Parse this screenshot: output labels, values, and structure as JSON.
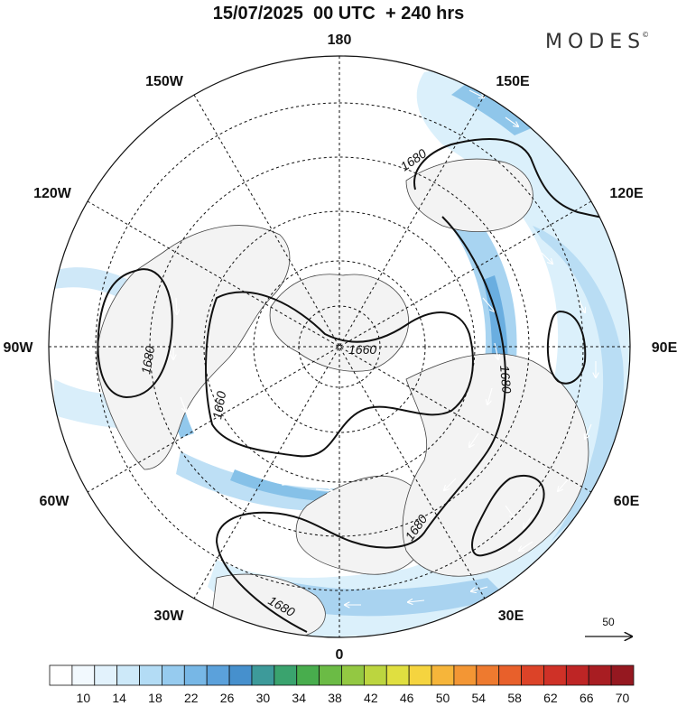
{
  "header": {
    "title": "15/07/2025  00 UTC  + 240 hrs",
    "brand": "MODES",
    "brand_mark": "©"
  },
  "map": {
    "projection": "north polar stereographic",
    "longitude_labels": [
      {
        "text": "180",
        "lon": 180
      },
      {
        "text": "150E",
        "lon": 150
      },
      {
        "text": "120E",
        "lon": 120
      },
      {
        "text": "90E",
        "lon": 90
      },
      {
        "text": "60E",
        "lon": 60
      },
      {
        "text": "30E",
        "lon": 30
      },
      {
        "text": "0",
        "lon": 0
      },
      {
        "text": "30W",
        "lon": -30
      },
      {
        "text": "60W",
        "lon": -60
      },
      {
        "text": "90W",
        "lon": -90
      },
      {
        "text": "120W",
        "lon": -120
      },
      {
        "text": "150W",
        "lon": -150
      }
    ],
    "contour_labels": [
      "1680",
      "1680",
      "1660",
      "1660",
      "1680",
      "1680",
      "1680"
    ],
    "wind_reference": {
      "value": "50",
      "unit": "arrow"
    }
  },
  "colorbar": {
    "labels": [
      "10",
      "14",
      "18",
      "22",
      "26",
      "30",
      "34",
      "38",
      "42",
      "46",
      "50",
      "54",
      "58",
      "62",
      "66",
      "70"
    ],
    "colors": [
      "#ffffff",
      "#f2f9fe",
      "#e2f2fc",
      "#cde9f9",
      "#b3dcf5",
      "#96cbef",
      "#77b7e6",
      "#5ba1db",
      "#4690cd",
      "#3d9a9a",
      "#3aa36e",
      "#48ad4d",
      "#6bbb45",
      "#93c842",
      "#bcd53f",
      "#e0df40",
      "#f5d43f",
      "#f6b53a",
      "#f39634",
      "#ee7a2f",
      "#e8602b",
      "#dc4328",
      "#cf3127",
      "#be2525",
      "#a81d22",
      "#951820"
    ]
  }
}
